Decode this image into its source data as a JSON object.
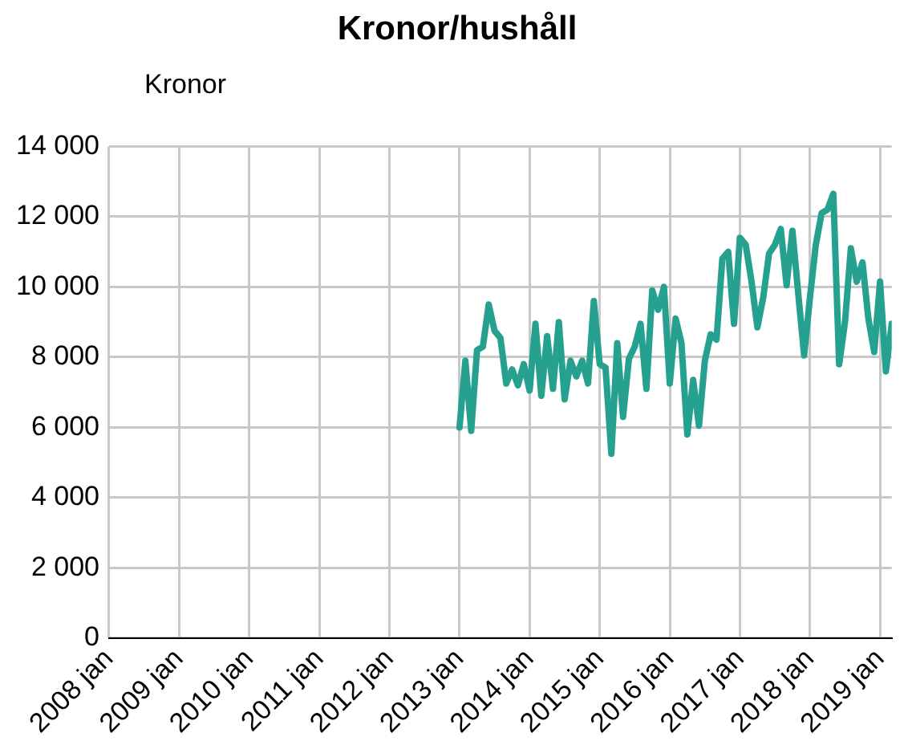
{
  "chart_data": {
    "type": "line",
    "title": "Kronor/hushåll",
    "ylabel": "Kronor",
    "x": [
      "2013-01",
      "2013-02",
      "2013-03",
      "2013-04",
      "2013-05",
      "2013-06",
      "2013-07",
      "2013-08",
      "2013-09",
      "2013-10",
      "2013-11",
      "2013-12",
      "2014-01",
      "2014-02",
      "2014-03",
      "2014-04",
      "2014-05",
      "2014-06",
      "2014-07",
      "2014-08",
      "2014-09",
      "2014-10",
      "2014-11",
      "2014-12",
      "2015-01",
      "2015-02",
      "2015-03",
      "2015-04",
      "2015-05",
      "2015-06",
      "2015-07",
      "2015-08",
      "2015-09",
      "2015-10",
      "2015-11",
      "2015-12",
      "2016-01",
      "2016-02",
      "2016-03",
      "2016-04",
      "2016-05",
      "2016-06",
      "2016-07",
      "2016-08",
      "2016-09",
      "2016-10",
      "2016-11",
      "2016-12",
      "2017-01",
      "2017-02",
      "2017-03",
      "2017-04",
      "2017-05",
      "2017-06",
      "2017-07",
      "2017-08",
      "2017-09",
      "2017-10",
      "2017-11",
      "2017-12",
      "2018-01",
      "2018-02",
      "2018-03",
      "2018-04",
      "2018-05",
      "2018-06",
      "2018-07",
      "2018-08",
      "2018-09",
      "2018-10",
      "2018-11",
      "2018-12",
      "2019-01",
      "2019-02",
      "2019-03"
    ],
    "series": [
      {
        "color": "#26a190",
        "values": [
          6000,
          7900,
          5900,
          8200,
          8300,
          9500,
          8750,
          8550,
          7250,
          7650,
          7200,
          7800,
          7050,
          8950,
          6900,
          8600,
          7100,
          9000,
          6800,
          7900,
          7450,
          7900,
          7250,
          9600,
          7800,
          7700,
          5250,
          8400,
          6300,
          7950,
          8300,
          8950,
          7100,
          9900,
          9350,
          10000,
          7250,
          9100,
          8400,
          5800,
          7350,
          6050,
          7900,
          8650,
          8500,
          10800,
          11000,
          8950,
          11400,
          11200,
          10150,
          8850,
          9700,
          10950,
          11200,
          11650,
          10050,
          11600,
          9800,
          8050,
          9700,
          11200,
          12100,
          12200,
          12650,
          7800,
          9000,
          11100,
          10150,
          10700,
          9100,
          8150,
          10150,
          7600,
          8950
        ]
      }
    ],
    "xlim": [
      "2008-01",
      "2019-03"
    ],
    "xticks": [
      {
        "value": "2008-01",
        "label": "2008 jan"
      },
      {
        "value": "2009-01",
        "label": "2009 jan"
      },
      {
        "value": "2010-01",
        "label": "2010 jan"
      },
      {
        "value": "2011-01",
        "label": "2011 jan"
      },
      {
        "value": "2012-01",
        "label": "2012 jan"
      },
      {
        "value": "2013-01",
        "label": "2013 jan"
      },
      {
        "value": "2014-01",
        "label": "2014 jan"
      },
      {
        "value": "2015-01",
        "label": "2015 jan"
      },
      {
        "value": "2016-01",
        "label": "2016 jan"
      },
      {
        "value": "2017-01",
        "label": "2017 jan"
      },
      {
        "value": "2018-01",
        "label": "2018 jan"
      },
      {
        "value": "2019-01",
        "label": "2019 jan"
      }
    ],
    "ylim": [
      0,
      14000
    ],
    "yticks": [
      0,
      {
        "value": 2000,
        "label": "2 000"
      },
      {
        "value": 4000,
        "label": "4 000"
      },
      {
        "value": 6000,
        "label": "6 000"
      },
      {
        "value": 8000,
        "label": "8 000"
      },
      {
        "value": 10000,
        "label": "10 000"
      },
      {
        "value": 12000,
        "label": "12 000"
      },
      {
        "value": 14000,
        "label": "14 000"
      }
    ],
    "grid": true,
    "legend": false,
    "marker": "none",
    "line_style": "solid"
  }
}
